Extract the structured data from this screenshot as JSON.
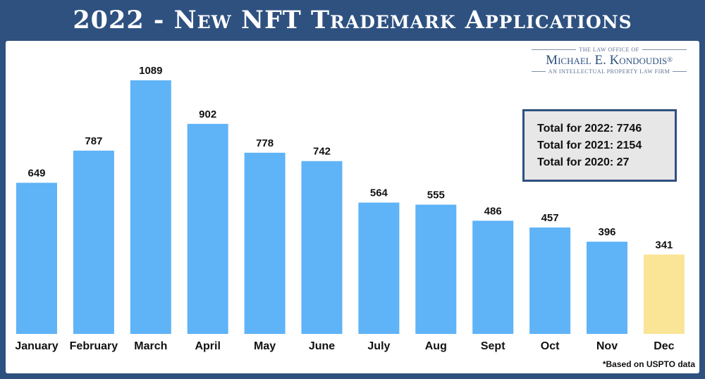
{
  "header": {
    "title": "2022 - New NFT Trademark Applications"
  },
  "logo": {
    "top_line": "THE LAW OFFICE OF",
    "name": "Michael E. Kondoudis",
    "registered": "®",
    "tagline": "AN INTELLECTUAL PROPERTY LAW FIRM"
  },
  "totals": {
    "line_2022": "Total for 2022: 7746",
    "line_2021": "Total for 2021: 2154",
    "line_2020": "Total for 2020: 27"
  },
  "footnote": "*Based on USPTO data",
  "colors": {
    "bar": "#5fb3f7",
    "highlight": "#fae496",
    "border": "#2e5180"
  },
  "chart_data": {
    "type": "bar",
    "title": "2022 - New NFT Trademark Applications",
    "categories": [
      "January",
      "February",
      "March",
      "April",
      "May",
      "June",
      "July",
      "Aug",
      "Sept",
      "Oct",
      "Nov",
      "Dec"
    ],
    "values": [
      649,
      787,
      1089,
      902,
      778,
      742,
      564,
      555,
      486,
      457,
      396,
      341
    ],
    "highlight_category": "Dec",
    "ylim": [
      0,
      1089
    ],
    "grid": false,
    "xlabel": "",
    "ylabel": ""
  }
}
